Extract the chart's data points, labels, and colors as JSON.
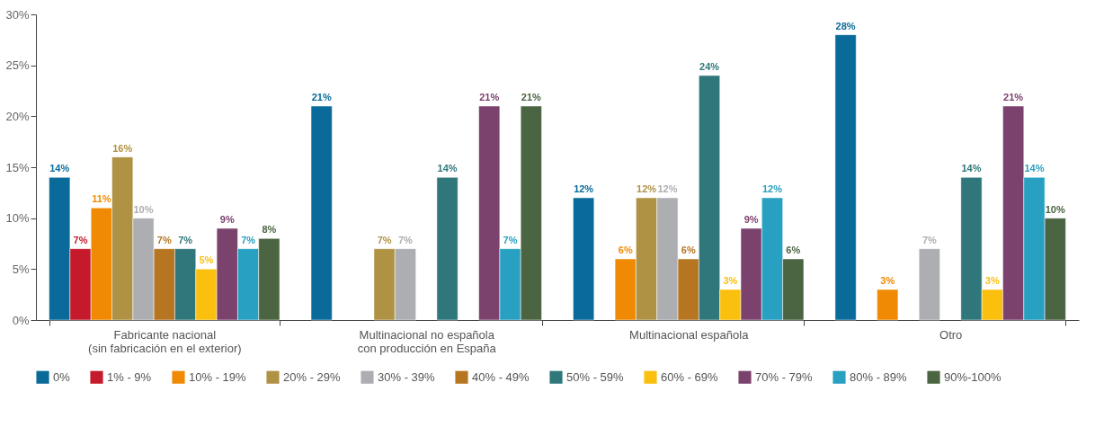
{
  "chart_data": {
    "type": "bar",
    "categories": [
      "Fabricante nacional\n(sin fabricación en el exterior)",
      "Multinacional no española\ncon producción en España",
      "Multinacional española",
      "Otro"
    ],
    "series": [
      {
        "name": "0%",
        "color": "#0a6a9a",
        "values": [
          14,
          21,
          12,
          28
        ],
        "value_labels": [
          "14%",
          "21%",
          "12%",
          "28%"
        ]
      },
      {
        "name": "1% - 9%",
        "color": "#c41a2b",
        "values": [
          7,
          null,
          null,
          null
        ],
        "value_labels": [
          "7%",
          null,
          null,
          null
        ]
      },
      {
        "name": "10% - 19%",
        "color": "#f08a04",
        "values": [
          11,
          null,
          6,
          3
        ],
        "value_labels": [
          "11%",
          null,
          "6%",
          "3%"
        ]
      },
      {
        "name": "20% - 29%",
        "color": "#b09244",
        "values": [
          16,
          7,
          12,
          null
        ],
        "value_labels": [
          "16%",
          "7%",
          "12%",
          null
        ]
      },
      {
        "name": "30% - 39%",
        "color": "#adaeb2",
        "values": [
          10,
          7,
          12,
          7
        ],
        "value_labels": [
          "10%",
          "7%",
          "12%",
          "7%"
        ]
      },
      {
        "name": "40% - 49%",
        "color": "#b67520",
        "values": [
          7,
          null,
          6,
          null
        ],
        "value_labels": [
          "7%",
          null,
          "6%",
          null
        ]
      },
      {
        "name": "50% - 59%",
        "color": "#2f777a",
        "values": [
          7,
          14,
          24,
          14
        ],
        "value_labels": [
          "7%",
          "14%",
          "24%",
          "14%"
        ]
      },
      {
        "name": "60% - 69%",
        "color": "#fbbf0e",
        "values": [
          5,
          null,
          3,
          3
        ],
        "value_labels": [
          "5%",
          null,
          "3%",
          "3%"
        ]
      },
      {
        "name": "70% - 79%",
        "color": "#7b426e",
        "values": [
          9,
          21,
          9,
          21
        ],
        "value_labels": [
          "9%",
          "21%",
          "9%",
          "21%"
        ]
      },
      {
        "name": "80% - 89%",
        "color": "#27a0c1",
        "values": [
          7,
          7,
          12,
          14
        ],
        "value_labels": [
          "7%",
          "7%",
          "12%",
          "14%"
        ]
      },
      {
        "name": "90%-100%",
        "color": "#4b6442",
        "values": [
          8,
          21,
          6,
          10
        ],
        "value_labels": [
          "8%",
          "21%",
          "6%",
          "10%"
        ]
      }
    ],
    "ylim": [
      0,
      30
    ],
    "yticks": [
      {
        "value": 0,
        "label": "0%"
      },
      {
        "value": 5,
        "label": "5%"
      },
      {
        "value": 10,
        "label": "10%"
      },
      {
        "value": 15,
        "label": "15%"
      },
      {
        "value": 20,
        "label": "20%"
      },
      {
        "value": 25,
        "label": "25%"
      },
      {
        "value": 30,
        "label": "30%"
      }
    ],
    "grid": false,
    "legend": "bottom"
  }
}
